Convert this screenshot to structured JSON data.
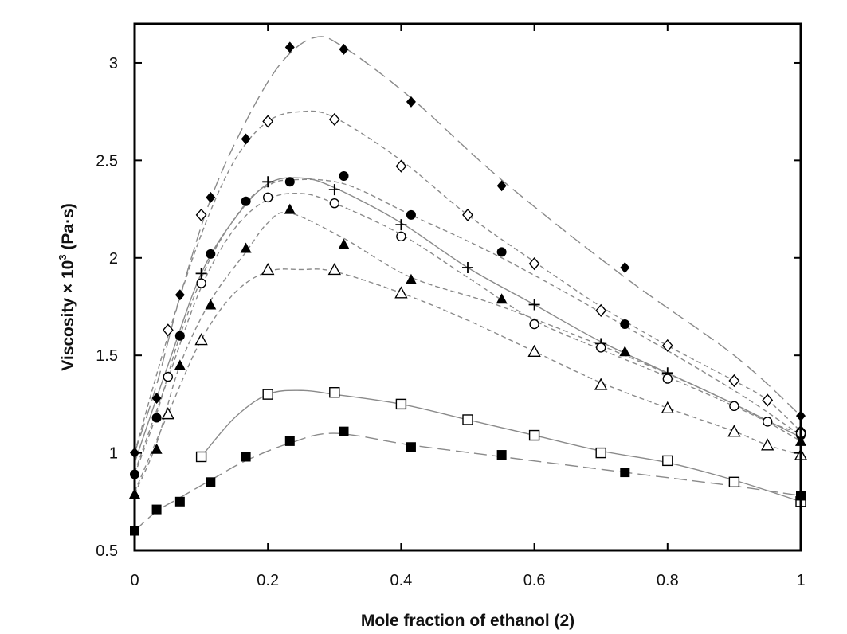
{
  "chart_data": {
    "type": "scatter",
    "title": "",
    "xlabel": "Mole fraction of ethanol (2)",
    "ylabel_main": "Viscosity × 10",
    "ylabel_sup": "3",
    "ylabel_unit": " (Pa·s)",
    "xlim": [
      0,
      1
    ],
    "ylim": [
      0.5,
      3.2
    ],
    "x_ticks": [
      0,
      0.2,
      0.4,
      0.6,
      0.8,
      1
    ],
    "x_tick_labels": [
      "0",
      "0.2",
      "0.4",
      "0.6",
      "0.8",
      "1"
    ],
    "y_ticks": [
      0.5,
      1,
      1.5,
      2,
      2.5,
      3
    ],
    "y_tick_labels": [
      "0.5",
      "1",
      "1.5",
      "2",
      "2.5",
      "3"
    ],
    "grid": false,
    "legend": "none",
    "series": [
      {
        "marker": "filled-diamond",
        "line": "long-dash",
        "x": [
          0,
          0.033,
          0.068,
          0.114,
          0.167,
          0.233,
          0.314,
          0.415,
          0.551,
          0.736,
          1.0
        ],
        "y": [
          1.0,
          1.28,
          1.81,
          2.31,
          2.61,
          3.08,
          3.07,
          2.8,
          2.37,
          1.95,
          1.19
        ],
        "curve_x": [
          0,
          0.033,
          0.068,
          0.114,
          0.167,
          0.22,
          0.27,
          0.314,
          0.415,
          0.551,
          0.736,
          0.9,
          1.0
        ],
        "curve_y": [
          1.0,
          1.35,
          1.8,
          2.3,
          2.7,
          3.0,
          3.13,
          3.08,
          2.82,
          2.4,
          1.9,
          1.5,
          1.19
        ]
      },
      {
        "marker": "open-diamond",
        "line": "short-dash",
        "x": [
          0.05,
          0.1,
          0.2,
          0.3,
          0.4,
          0.5,
          0.6,
          0.7,
          0.8,
          0.9,
          0.95,
          1.0
        ],
        "y": [
          1.63,
          2.22,
          2.7,
          2.71,
          2.47,
          2.22,
          1.97,
          1.73,
          1.55,
          1.37,
          1.27,
          1.11
        ],
        "curve_x": [
          0,
          0.05,
          0.1,
          0.15,
          0.2,
          0.25,
          0.3,
          0.4,
          0.5,
          0.6,
          0.7,
          0.8,
          0.9,
          0.95,
          1.0
        ],
        "curve_y": [
          1.0,
          1.6,
          2.12,
          2.5,
          2.7,
          2.75,
          2.72,
          2.5,
          2.22,
          1.98,
          1.75,
          1.55,
          1.37,
          1.27,
          1.11
        ]
      },
      {
        "marker": "filled-circle",
        "line": "short-dash",
        "x": [
          0,
          0.033,
          0.068,
          0.114,
          0.167,
          0.233,
          0.314,
          0.415,
          0.551,
          0.736,
          1.0
        ],
        "y": [
          0.89,
          1.18,
          1.6,
          2.02,
          2.29,
          2.39,
          2.42,
          2.22,
          2.03,
          1.66,
          1.09
        ],
        "curve_x": [
          0,
          0.033,
          0.068,
          0.114,
          0.167,
          0.2,
          0.233,
          0.314,
          0.415,
          0.551,
          0.736,
          0.9,
          1.0
        ],
        "curve_y": [
          0.89,
          1.2,
          1.6,
          2.0,
          2.28,
          2.37,
          2.4,
          2.38,
          2.22,
          2.0,
          1.65,
          1.32,
          1.09
        ]
      },
      {
        "marker": "plus",
        "line": "solid",
        "x": [
          0.1,
          0.2,
          0.3,
          0.4,
          0.5,
          0.6,
          0.7,
          0.8
        ],
        "y": [
          1.92,
          2.39,
          2.35,
          2.17,
          1.95,
          1.76,
          1.56,
          1.41
        ],
        "curve_x": [
          0,
          0.05,
          0.1,
          0.15,
          0.2,
          0.25,
          0.3,
          0.4,
          0.5,
          0.6,
          0.7,
          0.8,
          0.9,
          1.0
        ],
        "curve_y": [
          0.95,
          1.45,
          1.92,
          2.2,
          2.38,
          2.41,
          2.36,
          2.18,
          1.95,
          1.76,
          1.57,
          1.41,
          1.25,
          1.08
        ]
      },
      {
        "marker": "open-circle",
        "line": "short-dash",
        "x": [
          0.05,
          0.1,
          0.2,
          0.3,
          0.4,
          0.6,
          0.7,
          0.8,
          0.9,
          0.95,
          1.0
        ],
        "y": [
          1.39,
          1.87,
          2.31,
          2.28,
          2.11,
          1.66,
          1.54,
          1.38,
          1.24,
          1.16,
          1.1
        ],
        "curve_x": [
          0,
          0.05,
          0.1,
          0.15,
          0.2,
          0.25,
          0.3,
          0.4,
          0.5,
          0.6,
          0.7,
          0.8,
          0.9,
          0.95,
          1.0
        ],
        "curve_y": [
          0.9,
          1.38,
          1.85,
          2.15,
          2.3,
          2.33,
          2.28,
          2.12,
          1.9,
          1.68,
          1.53,
          1.39,
          1.24,
          1.16,
          1.1
        ]
      },
      {
        "marker": "filled-triangle",
        "line": "short-dash",
        "x": [
          0,
          0.033,
          0.068,
          0.114,
          0.167,
          0.233,
          0.314,
          0.415,
          0.551,
          0.736,
          1.0
        ],
        "y": [
          0.79,
          1.02,
          1.45,
          1.76,
          2.05,
          2.25,
          2.07,
          1.89,
          1.79,
          1.52,
          1.06
        ],
        "curve_x": [
          0,
          0.033,
          0.068,
          0.114,
          0.167,
          0.2,
          0.233,
          0.314,
          0.415,
          0.551,
          0.736,
          0.9,
          1.0
        ],
        "curve_y": [
          0.79,
          1.05,
          1.45,
          1.78,
          2.03,
          2.18,
          2.23,
          2.1,
          1.9,
          1.75,
          1.5,
          1.25,
          1.06
        ]
      },
      {
        "marker": "open-triangle",
        "line": "short-dash",
        "x": [
          0.05,
          0.1,
          0.2,
          0.3,
          0.4,
          0.6,
          0.7,
          0.8,
          0.9,
          0.95,
          1.0
        ],
        "y": [
          1.2,
          1.58,
          1.94,
          1.94,
          1.82,
          1.52,
          1.35,
          1.23,
          1.11,
          1.04,
          0.99
        ],
        "curve_x": [
          0,
          0.05,
          0.1,
          0.15,
          0.2,
          0.25,
          0.3,
          0.4,
          0.5,
          0.6,
          0.7,
          0.8,
          0.9,
          0.95,
          1.0
        ],
        "curve_y": [
          0.8,
          1.2,
          1.58,
          1.82,
          1.93,
          1.94,
          1.93,
          1.82,
          1.68,
          1.52,
          1.36,
          1.23,
          1.11,
          1.04,
          0.99
        ]
      },
      {
        "marker": "open-square",
        "line": "solid",
        "x": [
          0.1,
          0.2,
          0.3,
          0.4,
          0.5,
          0.6,
          0.7,
          0.8,
          0.9,
          1.0
        ],
        "y": [
          0.98,
          1.3,
          1.31,
          1.25,
          1.17,
          1.09,
          1.0,
          0.96,
          0.85,
          0.75
        ],
        "curve_x": [
          0.1,
          0.15,
          0.2,
          0.25,
          0.3,
          0.4,
          0.5,
          0.6,
          0.7,
          0.8,
          0.9,
          1.0
        ],
        "curve_y": [
          0.98,
          1.18,
          1.3,
          1.32,
          1.3,
          1.25,
          1.17,
          1.09,
          1.01,
          0.95,
          0.86,
          0.75
        ]
      },
      {
        "marker": "filled-square",
        "line": "long-dash",
        "x": [
          0,
          0.033,
          0.068,
          0.114,
          0.167,
          0.233,
          0.314,
          0.415,
          0.551,
          0.736,
          1.0
        ],
        "y": [
          0.6,
          0.71,
          0.75,
          0.85,
          0.98,
          1.06,
          1.11,
          1.03,
          0.99,
          0.9,
          0.78
        ],
        "curve_x": [
          0,
          0.033,
          0.068,
          0.114,
          0.167,
          0.233,
          0.3,
          0.415,
          0.551,
          0.736,
          0.9,
          1.0
        ],
        "curve_y": [
          0.6,
          0.7,
          0.77,
          0.86,
          0.96,
          1.05,
          1.1,
          1.04,
          0.98,
          0.9,
          0.83,
          0.78
        ]
      }
    ]
  }
}
